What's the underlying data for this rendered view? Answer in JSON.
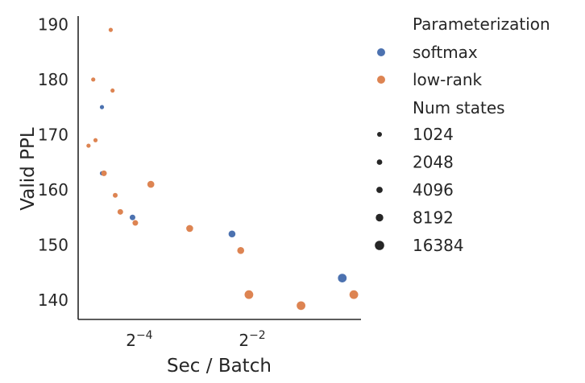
{
  "chart_data": {
    "type": "scatter",
    "title": "",
    "xlabel": "Sec / Batch",
    "ylabel": "Valid PPL",
    "x_scale": "log2",
    "xlim": [
      0.0295,
      0.95
    ],
    "ylim": [
      136.5,
      191.5
    ],
    "x_ticks": [
      {
        "value": 0.0625,
        "base": "2",
        "exp": "−4"
      },
      {
        "value": 0.25,
        "base": "2",
        "exp": "−2"
      }
    ],
    "y_ticks": [
      140,
      150,
      160,
      170,
      180,
      190
    ],
    "grid": false,
    "legend": {
      "placement": "outside-right",
      "hue_title": "Parameterization",
      "size_title": "Num states",
      "hue_entries": [
        {
          "name": "softmax",
          "color": "#4c72b0"
        },
        {
          "name": "low-rank",
          "color": "#dd8452"
        }
      ],
      "size_entries": [
        1024,
        2048,
        4096,
        8192,
        16384
      ]
    },
    "series": [
      {
        "name": "softmax",
        "color": "#4c72b0",
        "points": [
          {
            "x": 0.0395,
            "y": 175,
            "states": 1024
          },
          {
            "x": 0.0395,
            "y": 163,
            "states": 1024
          },
          {
            "x": 0.0575,
            "y": 155,
            "states": 4096
          },
          {
            "x": 0.195,
            "y": 152,
            "states": 8192
          },
          {
            "x": 0.755,
            "y": 144,
            "states": 16384
          }
        ]
      },
      {
        "name": "low-rank",
        "color": "#dd8452",
        "points": [
          {
            "x": 0.044,
            "y": 189,
            "states": 1024
          },
          {
            "x": 0.0355,
            "y": 180,
            "states": 1024
          },
          {
            "x": 0.045,
            "y": 178,
            "states": 1024
          },
          {
            "x": 0.0365,
            "y": 169,
            "states": 1024
          },
          {
            "x": 0.0335,
            "y": 168,
            "states": 1024
          },
          {
            "x": 0.0405,
            "y": 163,
            "states": 4096
          },
          {
            "x": 0.0465,
            "y": 159,
            "states": 2048
          },
          {
            "x": 0.0495,
            "y": 156,
            "states": 4096
          },
          {
            "x": 0.072,
            "y": 161,
            "states": 8192
          },
          {
            "x": 0.0595,
            "y": 154,
            "states": 4096
          },
          {
            "x": 0.116,
            "y": 153,
            "states": 8192
          },
          {
            "x": 0.217,
            "y": 149,
            "states": 8192
          },
          {
            "x": 0.24,
            "y": 141,
            "states": 16384
          },
          {
            "x": 0.455,
            "y": 139,
            "states": 16384
          },
          {
            "x": 0.87,
            "y": 141,
            "states": 16384
          }
        ]
      }
    ]
  }
}
